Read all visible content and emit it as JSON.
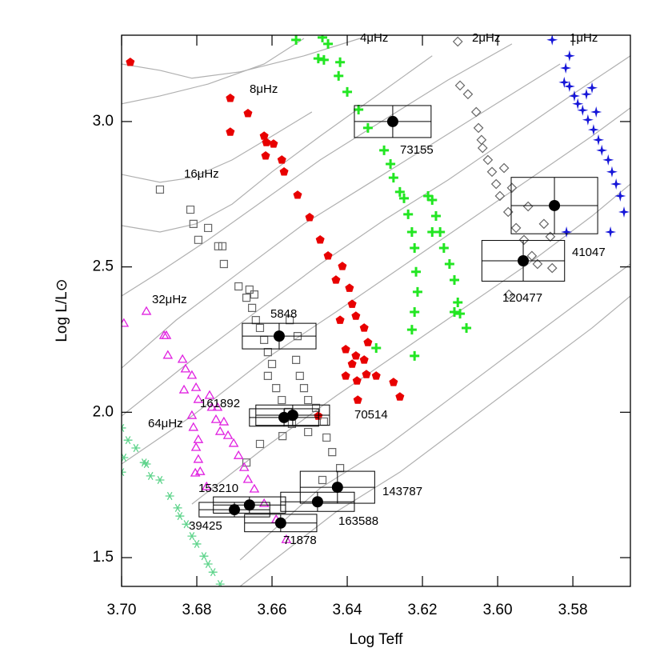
{
  "chart_data": {
    "type": "scatter",
    "xlabel": "Log Teff",
    "ylabel": "Log L/L⊙",
    "xlim": [
      3.7,
      3.5647
    ],
    "ylim": [
      1.401,
      3.297
    ],
    "xticks": [
      {
        "value": 3.7,
        "label": "3.70"
      },
      3.68,
      3.66,
      3.64,
      3.62,
      {
        "value": 3.6,
        "label": "3.60"
      },
      3.58
    ],
    "yticks": [
      1.5,
      {
        "value": 2,
        "label": "2.0"
      },
      2.5,
      {
        "value": 3,
        "label": "3.0"
      }
    ],
    "series": [
      {
        "marker": "line",
        "color": "#b0b0b0",
        "x": [
          3.7,
          3.6898,
          3.6813,
          3.6685,
          3.6515,
          3.6366
        ],
        "y": [
          3.198,
          3.176,
          3.149,
          3.171,
          3.226,
          3.286
        ]
      },
      {
        "marker": "line",
        "color": "#b0b0b0",
        "x": [
          3.7,
          3.6898,
          3.677,
          3.6621,
          3.6515
        ],
        "y": [
          3.061,
          3.088,
          3.129,
          3.198,
          3.286
        ]
      },
      {
        "marker": "line",
        "color": "#b0b0b0",
        "x": [
          3.7,
          3.6898,
          3.6813,
          3.6706,
          3.66,
          3.6494
        ],
        "y": [
          2.818,
          2.791,
          2.807,
          2.868,
          2.95,
          3.033
        ]
      },
      {
        "marker": "line",
        "color": "#b0b0b0",
        "x": [
          3.7,
          3.6898,
          3.6802,
          3.6706,
          3.66,
          3.6472,
          3.6323,
          3.6174
        ],
        "y": [
          2.642,
          2.62,
          2.648,
          2.716,
          2.827,
          2.95,
          3.088,
          3.226
        ]
      },
      {
        "marker": "line",
        "color": "#b0b0b0",
        "x": [
          3.7,
          3.6898,
          3.677,
          3.6621,
          3.6472,
          3.6302,
          3.6132,
          3.5962
        ],
        "y": [
          2.4,
          2.483,
          2.593,
          2.73,
          2.868,
          3.006,
          3.143,
          3.267
        ]
      },
      {
        "marker": "line",
        "color": "#b0b0b0",
        "x": [
          3.7,
          3.6855,
          3.6685,
          3.6515,
          3.6345,
          3.6174,
          3.6004,
          3.5834
        ],
        "y": [
          2.152,
          2.317,
          2.483,
          2.648,
          2.785,
          2.923,
          3.061,
          3.198
        ]
      },
      {
        "marker": "line",
        "color": "#b0b0b0",
        "x": [
          3.7,
          3.6813,
          3.6643,
          3.6472,
          3.6302,
          3.6132,
          3.5962,
          3.5791,
          3.5647
        ],
        "y": [
          1.987,
          2.18,
          2.345,
          2.51,
          2.661,
          2.799,
          2.95,
          3.102,
          3.226
        ]
      },
      {
        "marker": "line",
        "color": "#b0b0b0",
        "x": [
          3.7,
          3.6813,
          3.6621,
          3.643,
          3.626,
          3.6089,
          3.5919,
          3.5749,
          3.5647
        ],
        "y": [
          1.822,
          1.987,
          2.18,
          2.345,
          2.496,
          2.648,
          2.799,
          2.95,
          3.047
        ]
      },
      {
        "marker": "line",
        "color": "#b0b0b0",
        "x": [
          3.6813,
          3.6621,
          3.643,
          3.626,
          3.6089,
          3.5919,
          3.5749,
          3.5647
        ],
        "y": [
          1.684,
          1.877,
          2.056,
          2.207,
          2.359,
          2.51,
          2.675,
          2.785
        ]
      },
      {
        "marker": "line",
        "color": "#b0b0b0",
        "x": [
          3.6685,
          3.6472,
          3.6302,
          3.6132,
          3.5962,
          3.5791,
          3.5647
        ],
        "y": [
          1.492,
          1.739,
          1.877,
          2.042,
          2.207,
          2.372,
          2.51
        ]
      },
      {
        "marker": "line",
        "color": "#b0b0b0",
        "x": [
          3.6685,
          3.643,
          3.626,
          3.6089,
          3.5919,
          3.5749,
          3.5647
        ],
        "y": [
          1.401,
          1.657,
          1.794,
          1.96,
          2.125,
          2.29,
          2.4
        ]
      },
      {
        "name": "1μHz",
        "marker": "star4",
        "color": "#1515d8",
        "x": [
          3.5855,
          3.5809,
          3.5819,
          3.5823,
          3.5809,
          3.5796,
          3.5787,
          3.5774,
          3.576,
          3.5745,
          3.5732,
          3.5723,
          3.5706,
          3.5696,
          3.5685,
          3.5674,
          3.5664,
          3.57,
          3.5817,
          3.5749,
          3.5738,
          3.5764
        ],
        "y": [
          3.281,
          3.226,
          3.184,
          3.135,
          3.121,
          3.088,
          3.061,
          3.039,
          3.006,
          2.972,
          2.937,
          2.901,
          2.868,
          2.827,
          2.785,
          2.744,
          2.689,
          2.62,
          2.62,
          3.116,
          3.033,
          3.094
        ]
      },
      {
        "name": "2μHz",
        "marker": "diamond",
        "color": "#666666",
        "x": [
          3.6106,
          3.61,
          3.6079,
          3.6057,
          3.6051,
          3.604,
          3.6026,
          3.6015,
          3.6004,
          3.5994,
          3.5972,
          3.5951,
          3.593,
          3.5909,
          3.5894,
          3.586,
          3.5877,
          3.5855,
          3.597,
          3.6043,
          3.5983,
          3.5962,
          3.5919
        ],
        "y": [
          3.275,
          3.124,
          3.094,
          3.033,
          2.978,
          2.909,
          2.868,
          2.827,
          2.785,
          2.744,
          2.689,
          2.634,
          2.593,
          2.538,
          2.51,
          2.604,
          2.648,
          2.496,
          2.405,
          2.937,
          2.84,
          2.772,
          2.708
        ]
      },
      {
        "name": "4μHz",
        "marker": "plus",
        "color": "#22e622",
        "x": [
          3.6536,
          3.6466,
          3.6451,
          3.6477,
          3.6462,
          3.6419,
          3.6423,
          3.64,
          3.637,
          3.6345,
          3.6302,
          3.6285,
          3.6277,
          3.626,
          3.6249,
          3.6238,
          3.6228,
          3.6221,
          3.6217,
          3.6213,
          3.6221,
          3.6174,
          3.6164,
          3.6153,
          3.6143,
          3.6128,
          3.6115,
          3.6106,
          3.61,
          3.6083,
          3.6115,
          3.6228,
          3.6221,
          3.6323,
          3.6185,
          3.6174
        ],
        "y": [
          3.281,
          3.289,
          3.267,
          3.217,
          3.212,
          3.204,
          3.157,
          3.102,
          3.041,
          2.978,
          2.901,
          2.854,
          2.807,
          2.758,
          2.736,
          2.681,
          2.62,
          2.565,
          2.483,
          2.414,
          2.345,
          2.73,
          2.675,
          2.62,
          2.565,
          2.51,
          2.455,
          2.378,
          2.339,
          2.29,
          2.345,
          2.284,
          2.194,
          2.221,
          2.744,
          2.62
        ]
      },
      {
        "name": "8μHz",
        "marker": "pentagon",
        "color": "#e80000",
        "x": [
          3.6977,
          3.6711,
          3.6664,
          3.6711,
          3.6621,
          3.6615,
          3.6596,
          3.6617,
          3.6574,
          3.6568,
          3.6532,
          3.65,
          3.6472,
          3.6451,
          3.6413,
          3.643,
          3.6394,
          3.6387,
          3.6377,
          3.6355,
          3.6345,
          3.6377,
          3.6387,
          3.6404,
          3.6355,
          3.6349,
          3.6323,
          3.6277,
          3.626,
          3.6372,
          3.6477,
          3.6374,
          3.6404,
          3.6419
        ],
        "y": [
          3.204,
          3.08,
          3.028,
          2.964,
          2.95,
          2.928,
          2.923,
          2.882,
          2.868,
          2.827,
          2.747,
          2.67,
          2.593,
          2.538,
          2.502,
          2.455,
          2.427,
          2.372,
          2.331,
          2.29,
          2.24,
          2.194,
          2.166,
          2.125,
          2.18,
          2.13,
          2.125,
          2.103,
          2.053,
          2.042,
          1.987,
          2.108,
          2.216,
          2.317
        ]
      },
      {
        "name": "16μHz",
        "marker": "square",
        "color": "#666666",
        "x": [
          3.6898,
          3.6817,
          3.6809,
          3.6796,
          3.677,
          3.6743,
          3.6732,
          3.6728,
          3.6689,
          3.666,
          3.6668,
          3.6647,
          3.6653,
          3.6643,
          3.6632,
          3.6621,
          3.6611,
          3.66,
          3.6611,
          3.6589,
          3.6574,
          3.6557,
          3.6547,
          3.6536,
          3.6526,
          3.6515,
          3.6504,
          3.6483,
          3.6462,
          3.6455,
          3.6504,
          3.644,
          3.6419,
          3.6466,
          3.6632,
          3.6572,
          3.6668,
          3.6553,
          3.6532
        ],
        "y": [
          2.766,
          2.697,
          2.648,
          2.593,
          2.634,
          2.571,
          2.571,
          2.51,
          2.433,
          2.422,
          2.394,
          2.405,
          2.359,
          2.317,
          2.29,
          2.249,
          2.207,
          2.166,
          2.125,
          2.083,
          2.042,
          2.001,
          1.96,
          2.18,
          2.125,
          2.083,
          2.042,
          2.015,
          1.968,
          1.913,
          1.932,
          1.863,
          1.808,
          1.767,
          1.891,
          1.918,
          1.827,
          2.317,
          2.262
        ]
      },
      {
        "name": "32μHz",
        "marker": "triangle",
        "color": "#e020e0",
        "x": [
          3.6994,
          3.6934,
          3.6887,
          3.6881,
          3.6877,
          3.6838,
          3.683,
          3.6813,
          3.6802,
          3.6796,
          3.6813,
          3.6809,
          3.6796,
          3.6802,
          3.6796,
          3.6791,
          3.6766,
          3.676,
          3.6749,
          3.6738,
          3.6728,
          3.6717,
          3.6702,
          3.6689,
          3.6674,
          3.6664,
          3.6647,
          3.6621,
          3.6589,
          3.6562,
          3.6745,
          3.6834,
          3.6804,
          3.6774
        ],
        "y": [
          2.304,
          2.345,
          2.262,
          2.262,
          2.194,
          2.18,
          2.147,
          2.125,
          2.083,
          2.042,
          1.987,
          1.946,
          1.904,
          1.877,
          1.836,
          1.794,
          2.056,
          2.015,
          1.973,
          1.932,
          1.965,
          1.918,
          1.891,
          1.849,
          1.808,
          1.767,
          1.734,
          1.684,
          1.629,
          1.56,
          2.015,
          2.075,
          1.789,
          1.742
        ]
      },
      {
        "name": "64μHz",
        "marker": "asterisk",
        "color": "#5fd48c",
        "x": [
          3.7,
          3.6983,
          3.6962,
          3.694,
          3.6934,
          3.6923,
          3.6898,
          3.6872,
          3.6851,
          3.6845,
          3.6828,
          3.6813,
          3.68,
          3.6781,
          3.677,
          3.6757,
          3.6738,
          3.6994,
          3.7
        ],
        "y": [
          1.946,
          1.904,
          1.877,
          1.827,
          1.822,
          1.781,
          1.767,
          1.712,
          1.671,
          1.643,
          1.615,
          1.574,
          1.547,
          1.505,
          1.478,
          1.45,
          1.409,
          1.844,
          1.794
        ]
      }
    ],
    "stars": [
      {
        "name": "73155",
        "x": 3.6279,
        "y": 3.0,
        "xerr": 0.0102,
        "yerr": 0.055
      },
      {
        "name": "41047",
        "x": 3.5849,
        "y": 2.711,
        "xerr": 0.0115,
        "yerr": 0.097
      },
      {
        "name": "120477",
        "x": 3.5932,
        "y": 2.521,
        "xerr": 0.011,
        "yerr": 0.07
      },
      {
        "name": "5848",
        "x": 3.6581,
        "y": 2.262,
        "xerr": 0.0098,
        "yerr": 0.044
      },
      {
        "name": "161892",
        "x": 3.6568,
        "y": 1.982,
        "xerr": 0.0092,
        "yerr": 0.03
      },
      {
        "name": "70514",
        "x": 3.6545,
        "y": 1.99,
        "xerr": 0.0098,
        "yerr": 0.035
      },
      {
        "name": "153210",
        "x": 3.666,
        "y": 1.681,
        "xerr": 0.0096,
        "yerr": 0.028
      },
      {
        "name": "39425",
        "x": 3.67,
        "y": 1.665,
        "xerr": 0.0094,
        "yerr": 0.025
      },
      {
        "name": "71878",
        "x": 3.6577,
        "y": 1.619,
        "xerr": 0.0096,
        "yerr": 0.03
      },
      {
        "name": "163588",
        "x": 3.6479,
        "y": 1.692,
        "xerr": 0.0098,
        "yerr": 0.033
      },
      {
        "name": "143787",
        "x": 3.6426,
        "y": 1.742,
        "xerr": 0.0099,
        "yerr": 0.055
      }
    ]
  }
}
